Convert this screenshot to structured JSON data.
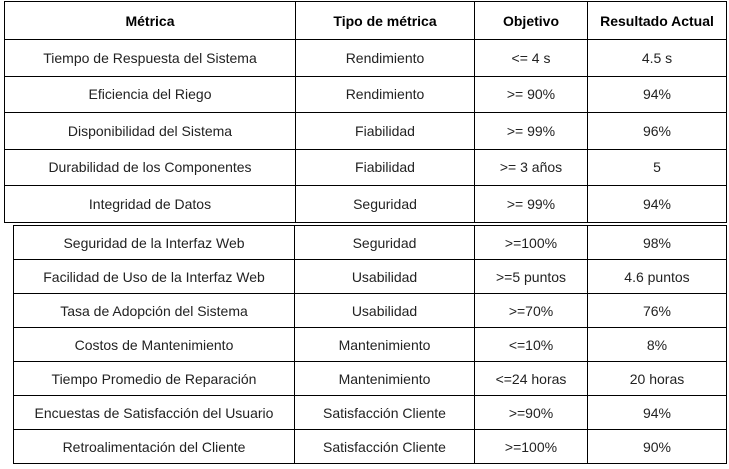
{
  "headers": [
    "Métrica",
    "Tipo de métrica",
    "Objetivo",
    "Resultado Actual"
  ],
  "rows_top": [
    [
      "Tiempo de Respuesta del Sistema",
      "Rendimiento",
      "<= 4 s",
      "4.5 s"
    ],
    [
      "Eficiencia del Riego",
      "Rendimiento",
      ">= 90%",
      "94%"
    ],
    [
      "Disponibilidad del Sistema",
      "Fiabilidad",
      ">= 99%",
      "96%"
    ],
    [
      "Durabilidad de los Componentes",
      "Fiabilidad",
      ">= 3 años",
      "5"
    ],
    [
      "Integridad de Datos",
      "Seguridad",
      ">= 99%",
      "94%"
    ]
  ],
  "rows_bottom": [
    [
      "Seguridad de la Interfaz Web",
      "Seguridad",
      ">=100%",
      "98%"
    ],
    [
      "Facilidad de Uso de la Interfaz Web",
      "Usabilidad",
      ">=5 puntos",
      "4.6 puntos"
    ],
    [
      "Tasa de Adopción del Sistema",
      "Usabilidad",
      ">=70%",
      "76%"
    ],
    [
      "Costos de Mantenimiento",
      "Mantenimiento",
      "<=10%",
      "8%"
    ],
    [
      "Tiempo Promedio de Reparación",
      "Mantenimiento",
      "<=24 horas",
      "20 horas"
    ],
    [
      "Encuestas de Satisfacción del Usuario",
      "Satisfacción Cliente",
      ">=90%",
      "94%"
    ],
    [
      "Retroalimentación del Cliente",
      "Satisfacción Cliente",
      ">=100%",
      "90%"
    ]
  ]
}
